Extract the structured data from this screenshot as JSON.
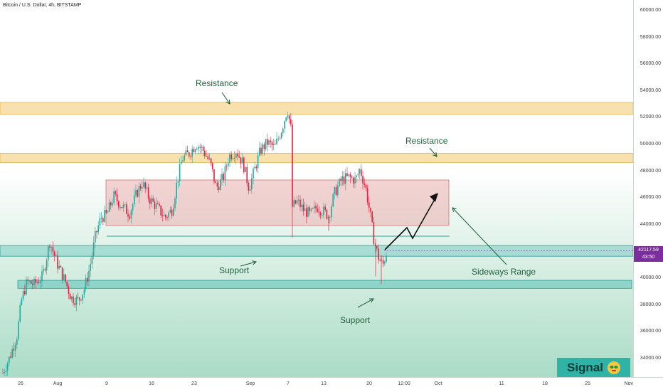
{
  "chart_header": {
    "title": "Bitcoin / U.S. Dollar, 4h, BITSTAMP"
  },
  "annotations": {
    "resistance_1": "Resistance",
    "resistance_2": "Resistance",
    "support_1": "Support",
    "support_2": "Support",
    "range": "Sideways Range"
  },
  "price_tag": {
    "price": "42117.59",
    "countdown": "43:50"
  },
  "brand": {
    "signal_label": "Signal",
    "icon": "alien-face-icon"
  },
  "colors": {
    "up": "#26a69a",
    "down": "#e91e3c",
    "resistance": "#f3c96b",
    "support": "#3fb7b0",
    "range": "#e8a0a0",
    "accent": "#7b2f9e"
  },
  "chart_data": {
    "type": "candlestick",
    "symbol": "Bitcoin / U.S. Dollar",
    "interval": "4h",
    "exchange": "BITSTAMP",
    "y_ticks": [
      "60000.00",
      "58000.00",
      "56000.00",
      "54000.00",
      "52000.00",
      "50000.00",
      "48000.00",
      "46000.00",
      "44000.00",
      "42000.00",
      "40000.00",
      "38000.00",
      "36000.00",
      "34000.00"
    ],
    "y_tick_values": [
      60000,
      58000,
      56000,
      54000,
      52000,
      50000,
      48000,
      46000,
      44000,
      42000,
      40000,
      38000,
      36000,
      34000
    ],
    "ylim": [
      32500,
      61000
    ],
    "x_ticks": [
      "26",
      "Aug",
      "9",
      "16",
      "23",
      "Sep",
      "7",
      "13",
      "20",
      "12:00",
      "Oct",
      "11",
      "18",
      "25",
      "Nov"
    ],
    "resistance_zones": [
      [
        52300,
        53200
      ],
      [
        48700,
        49400
      ]
    ],
    "range_zone": [
      44000,
      47400
    ],
    "support_zones": [
      [
        41700,
        42500
      ],
      [
        39300,
        39900
      ]
    ],
    "level_line": 43200,
    "last_price": 42117.59
  }
}
